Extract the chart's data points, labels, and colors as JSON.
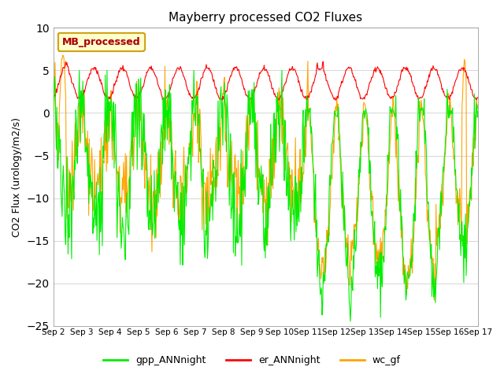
{
  "title": "Mayberry processed CO2 Fluxes",
  "ylabel": "CO2 Flux (urology/m2/s)",
  "ylim": [
    -25,
    10
  ],
  "yticks": [
    -25,
    -20,
    -15,
    -10,
    -5,
    0,
    5,
    10
  ],
  "legend_label": "MB_processed",
  "legend_facecolor": "#ffffcc",
  "legend_edgecolor": "#cc9900",
  "plot_bg_color": "#ffffff",
  "fig_bg_color": "#ffffff",
  "line_green": "#00ee00",
  "line_red": "#ff0000",
  "line_orange": "#ffa500",
  "line_width": 0.8,
  "n_days": 15,
  "pts_per_day": 48,
  "title_fontsize": 11,
  "axis_fontsize": 9,
  "tick_fontsize": 7.5,
  "legend_fontsize": 9
}
